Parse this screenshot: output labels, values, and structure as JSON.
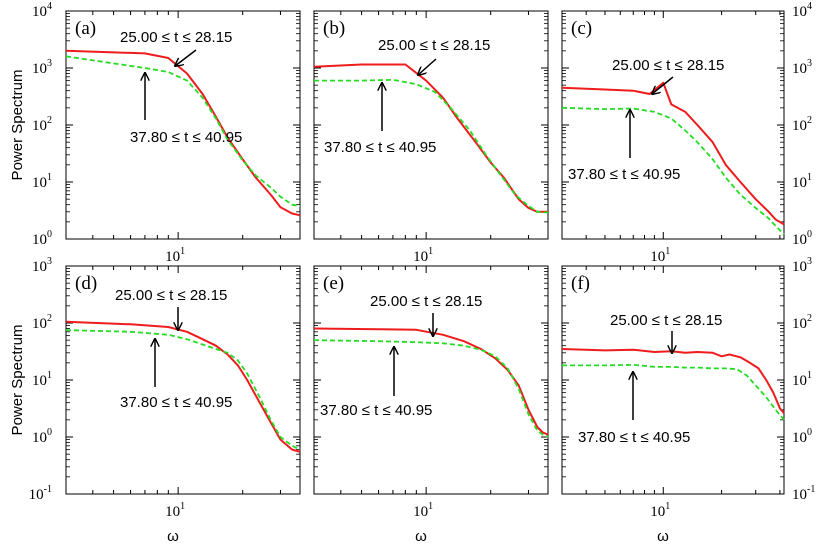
{
  "chart_data": [
    {
      "type": "line",
      "panel_label": "(a)",
      "xlabel": "",
      "ylabel": "Power Spectrum",
      "ylim_exp": [
        0,
        4
      ],
      "yticks": [
        {
          "b": "10",
          "e": "0"
        },
        {
          "b": "10",
          "e": "1"
        },
        {
          "b": "10",
          "e": "2"
        },
        {
          "b": "10",
          "e": "3"
        },
        {
          "b": "10",
          "e": "4"
        }
      ],
      "xlim": [
        3,
        37
      ],
      "xticks": [
        {
          "b": "10",
          "e": "1"
        }
      ],
      "series": [
        {
          "name": "25.00 ≤ t ≤ 28.15",
          "color": "#ee1c1c",
          "dashed": false,
          "x": [
            3,
            7,
            9,
            11,
            13,
            15,
            17,
            20,
            23,
            27,
            30,
            34,
            37
          ],
          "y": [
            2000,
            1800,
            1500,
            800,
            350,
            140,
            60,
            25,
            12,
            6,
            3.6,
            2.8,
            2.6
          ]
        },
        {
          "name": "37.80 ≤ t ≤ 40.95",
          "color": "#22dd22",
          "dashed": true,
          "x": [
            3,
            7,
            9,
            11,
            13,
            15,
            17,
            20,
            23,
            27,
            30,
            34,
            37
          ],
          "y": [
            1600,
            1000,
            850,
            600,
            300,
            130,
            55,
            24,
            13,
            8,
            5.5,
            4,
            3.8
          ]
        }
      ],
      "annotations": [
        {
          "text": "25.00 ≤ t ≤ 28.15"
        },
        {
          "text": "37.80 ≤ t ≤ 40.95"
        }
      ]
    },
    {
      "type": "line",
      "panel_label": "(b)",
      "xlabel": "",
      "ylabel": "",
      "ylim_exp": [
        0,
        4
      ],
      "yticks": [],
      "xlim": [
        3,
        37
      ],
      "xticks": [
        {
          "b": "10",
          "e": "1"
        }
      ],
      "series": [
        {
          "name": "25.00 ≤ t ≤ 28.15",
          "color": "#ee1c1c",
          "dashed": false,
          "x": [
            3,
            5,
            8,
            10,
            12,
            14,
            17,
            20,
            23,
            27,
            30,
            33,
            37
          ],
          "y": [
            1050,
            1150,
            1150,
            600,
            300,
            130,
            50,
            22,
            12,
            5,
            3.5,
            3,
            3
          ]
        },
        {
          "name": "37.80 ≤ t ≤ 40.95",
          "color": "#22dd22",
          "dashed": true,
          "x": [
            3,
            5,
            7,
            9,
            11,
            13,
            16,
            19,
            22,
            26,
            30,
            33,
            37
          ],
          "y": [
            600,
            600,
            620,
            520,
            380,
            200,
            80,
            30,
            14,
            6,
            3.8,
            3,
            2.9
          ]
        }
      ],
      "annotations": [
        {
          "text": "25.00 ≤ t ≤ 28.15"
        },
        {
          "text": "37.80 ≤ t ≤ 40.95"
        }
      ]
    },
    {
      "type": "line",
      "panel_label": "(c)",
      "xlabel": "",
      "ylabel": "",
      "ylim_exp": [
        0,
        4
      ],
      "yticks": [
        {
          "b": "10",
          "e": "0"
        },
        {
          "b": "10",
          "e": "1"
        },
        {
          "b": "10",
          "e": "2"
        },
        {
          "b": "10",
          "e": "3"
        },
        {
          "b": "10",
          "e": "4"
        }
      ],
      "xlim": [
        3,
        42
      ],
      "xticks": [
        {
          "b": "10",
          "e": "1"
        }
      ],
      "series": [
        {
          "name": "25.00 ≤ t ≤ 28.15",
          "color": "#ee1c1c",
          "dashed": false,
          "x": [
            3,
            5,
            7,
            8.5,
            10,
            11,
            13,
            15,
            18,
            21,
            25,
            30,
            35,
            38,
            42
          ],
          "y": [
            450,
            420,
            400,
            350,
            550,
            230,
            170,
            100,
            50,
            20,
            10,
            5,
            3,
            2.2,
            1.8
          ]
        },
        {
          "name": "37.80 ≤ t ≤ 40.95",
          "color": "#22dd22",
          "dashed": true,
          "x": [
            3,
            5,
            7,
            9,
            11,
            13,
            15,
            18,
            21,
            25,
            30,
            35,
            38,
            42
          ],
          "y": [
            200,
            190,
            195,
            170,
            130,
            80,
            50,
            25,
            12,
            6,
            3.5,
            2.3,
            1.7,
            1.2
          ]
        }
      ],
      "annotations": [
        {
          "text": "25.00 ≤ t ≤ 28.15"
        },
        {
          "text": "37.80 ≤ t ≤ 40.95"
        }
      ]
    },
    {
      "type": "line",
      "panel_label": "(d)",
      "xlabel": "ω",
      "ylabel": "Power Spectrum",
      "ylim_exp": [
        -1,
        3
      ],
      "yticks": [
        {
          "b": "10",
          "e": "-1"
        },
        {
          "b": "10",
          "e": "0"
        },
        {
          "b": "10",
          "e": "1"
        },
        {
          "b": "10",
          "e": "2"
        },
        {
          "b": "10",
          "e": "3"
        }
      ],
      "xlim": [
        3,
        37
      ],
      "xticks": [
        {
          "b": "10",
          "e": "1"
        }
      ],
      "series": [
        {
          "name": "25.00 ≤ t ≤ 28.15",
          "color": "#ee1c1c",
          "dashed": false,
          "x": [
            3,
            6,
            9,
            11,
            13,
            15,
            17,
            19,
            21,
            24,
            27,
            30,
            34,
            37
          ],
          "y": [
            105,
            95,
            85,
            70,
            52,
            40,
            28,
            18,
            10,
            4,
            1.8,
            0.9,
            0.6,
            0.55
          ]
        },
        {
          "name": "37.80 ≤ t ≤ 40.95",
          "color": "#22dd22",
          "dashed": true,
          "x": [
            3,
            6,
            9,
            11,
            13,
            15,
            17,
            19,
            21,
            24,
            27,
            30,
            34,
            37
          ],
          "y": [
            75,
            70,
            62,
            52,
            42,
            35,
            30,
            22,
            13,
            5,
            2,
            1,
            0.7,
            0.6
          ]
        }
      ],
      "annotations": [
        {
          "text": "25.00 ≤ t ≤ 28.15"
        },
        {
          "text": "37.80 ≤ t ≤ 40.95"
        }
      ]
    },
    {
      "type": "line",
      "panel_label": "(e)",
      "xlabel": "ω",
      "ylabel": "",
      "ylim_exp": [
        -1,
        3
      ],
      "yticks": [],
      "xlim": [
        3,
        37
      ],
      "xticks": [
        {
          "b": "10",
          "e": "1"
        }
      ],
      "series": [
        {
          "name": "25.00 ≤ t ≤ 28.15",
          "color": "#ee1c1c",
          "dashed": false,
          "x": [
            3,
            6,
            9,
            12,
            15,
            18,
            21,
            24,
            27,
            30,
            33,
            35,
            37
          ],
          "y": [
            80,
            78,
            76,
            62,
            48,
            35,
            24,
            15,
            8,
            3,
            1.5,
            1.2,
            1.1
          ]
        },
        {
          "name": "37.80 ≤ t ≤ 40.95",
          "color": "#22dd22",
          "dashed": true,
          "x": [
            3,
            6,
            9,
            12,
            15,
            18,
            21,
            24,
            27,
            30,
            33,
            35,
            37
          ],
          "y": [
            50,
            48,
            46,
            44,
            40,
            34,
            26,
            16,
            7,
            2.5,
            1.3,
            1.1,
            1
          ]
        }
      ],
      "annotations": [
        {
          "text": "25.00 ≤ t ≤ 28.15"
        },
        {
          "text": "37.80 ≤ t ≤ 40.95"
        }
      ]
    },
    {
      "type": "line",
      "panel_label": "(f)",
      "xlabel": "ω",
      "ylabel": "",
      "ylim_exp": [
        -1,
        3
      ],
      "yticks": [
        {
          "b": "10",
          "e": "-1"
        },
        {
          "b": "10",
          "e": "0"
        },
        {
          "b": "10",
          "e": "1"
        },
        {
          "b": "10",
          "e": "2"
        },
        {
          "b": "10",
          "e": "3"
        }
      ],
      "xlim": [
        3,
        42
      ],
      "xticks": [
        {
          "b": "10",
          "e": "1"
        }
      ],
      "series": [
        {
          "name": "25.00 ≤ t ≤ 28.15",
          "color": "#ee1c1c",
          "dashed": false,
          "x": [
            3,
            5,
            7,
            9,
            11,
            13,
            15,
            18,
            20,
            22,
            25,
            28,
            31,
            34,
            37,
            40,
            42
          ],
          "y": [
            35,
            33,
            34,
            31,
            32,
            30,
            31,
            30,
            26,
            28,
            25,
            20,
            16,
            10,
            6,
            3.2,
            2.6
          ]
        },
        {
          "name": "37.80 ≤ t ≤ 40.95",
          "color": "#22dd22",
          "dashed": true,
          "x": [
            3,
            5,
            7,
            9,
            11,
            13,
            15,
            18,
            21,
            24,
            27,
            30,
            34,
            38,
            42
          ],
          "y": [
            18,
            18,
            18.5,
            17,
            17,
            16.5,
            16.5,
            16,
            16,
            15.5,
            12,
            8,
            5,
            3,
            2
          ]
        }
      ],
      "annotations": [
        {
          "text": "25.00 ≤ t ≤ 28.15"
        },
        {
          "text": "37.80 ≤ t ≤ 40.95"
        }
      ]
    }
  ]
}
